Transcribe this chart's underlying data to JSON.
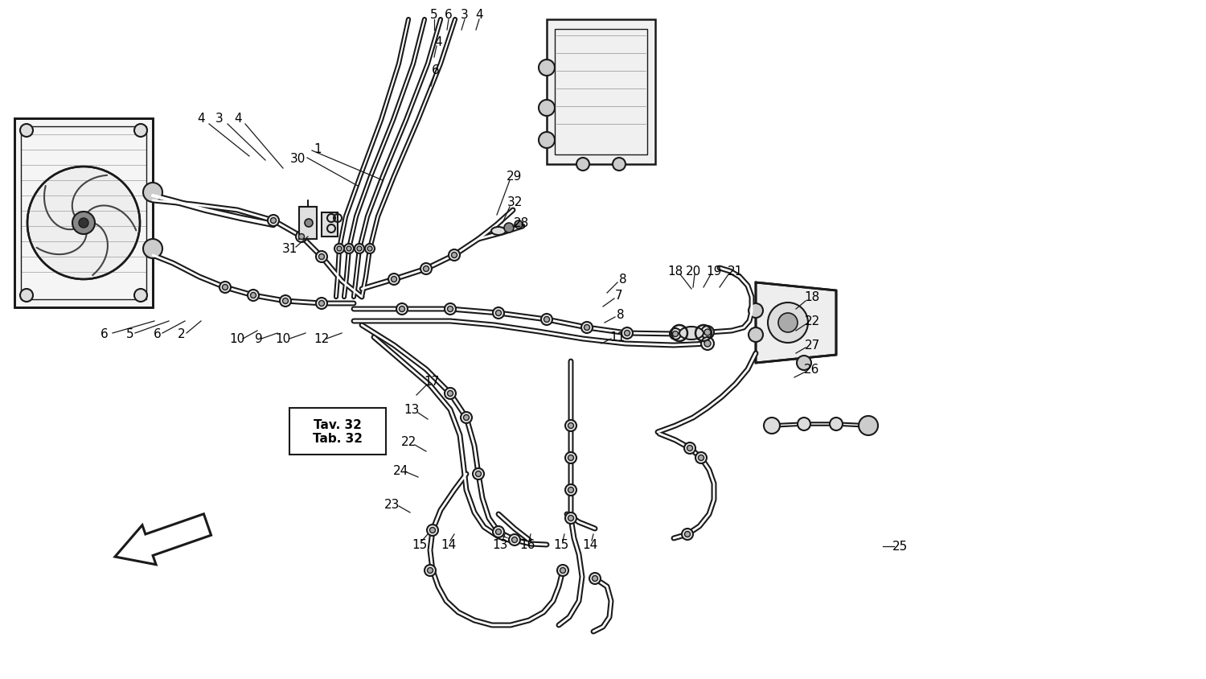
{
  "background_color": "#ffffff",
  "line_color": "#000000",
  "figsize": [
    15.0,
    8.45
  ],
  "dpi": 100,
  "tav_text": "Tav. 32\nTab. 32",
  "label_fontsize": 11,
  "pipe_lw_outer": 4.5,
  "pipe_lw_inner": 2.0,
  "coupling_r": 7
}
